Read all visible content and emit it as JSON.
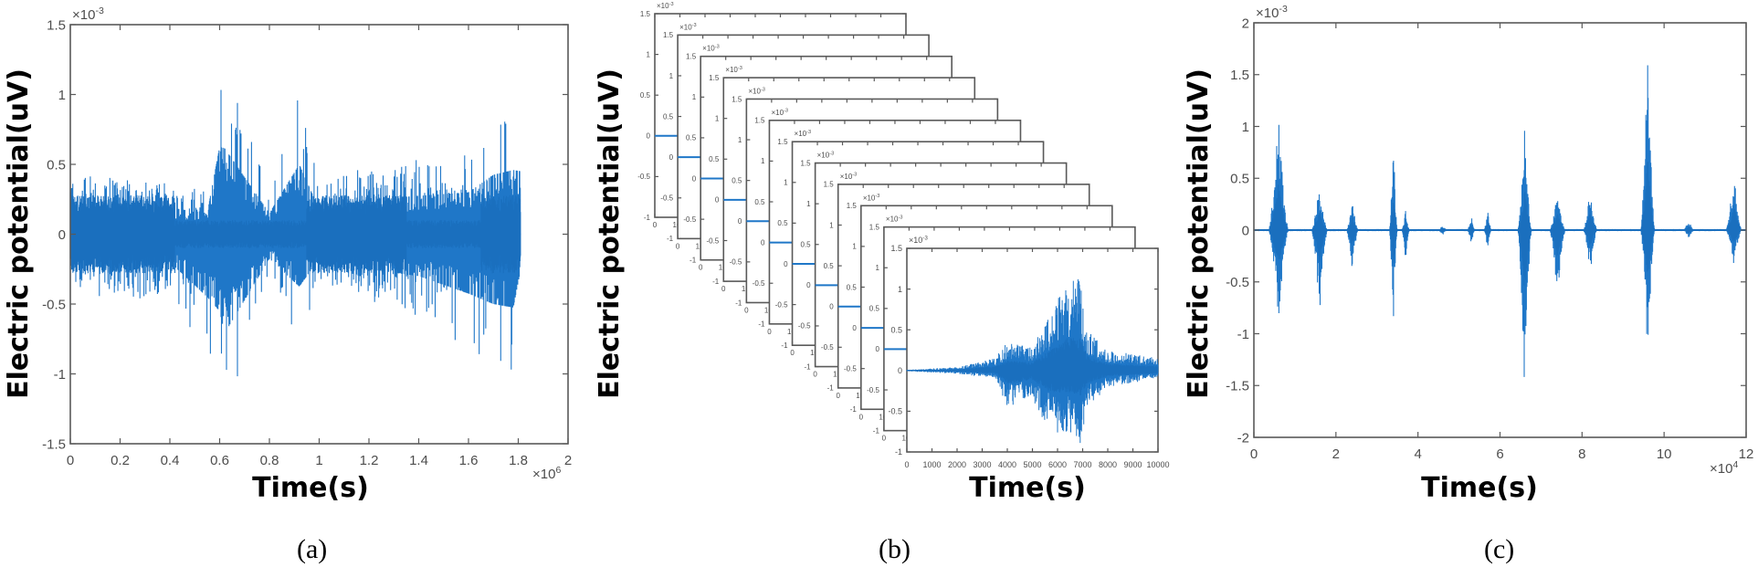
{
  "figure": {
    "panel_labels": [
      "(a)",
      "(b)",
      "(c)"
    ]
  },
  "colors": {
    "signal": "#1f77c8",
    "signal_dense": "#1a6fbe",
    "axis": "#595959",
    "tick_text": "#4d4d4d"
  },
  "chart_data": [
    {
      "id": "a",
      "type": "line",
      "title": "",
      "xlabel": "Time(s)",
      "ylabel": "Electric potential(uV)",
      "x_multiplier": "×10^6",
      "y_multiplier": "×10^-3",
      "xlim": [
        0,
        2
      ],
      "ylim": [
        -1.5,
        1.5
      ],
      "xticks": [
        "0",
        "0.2",
        "0.4",
        "0.6",
        "0.8",
        "1",
        "1.2",
        "1.4",
        "1.6",
        "1.8",
        "2"
      ],
      "yticks": [
        "-1.5",
        "-1",
        "-0.5",
        "0",
        "0.5",
        "1",
        "1.5"
      ],
      "grid": false,
      "description": "Dense oscillating signal from 0 to ~1.81e6 s, envelope ~±0.4e-3 with spikes",
      "envelope": {
        "x": [
          0,
          0.2,
          0.4,
          0.55,
          0.6,
          0.62,
          0.8,
          0.92,
          1.0,
          1.2,
          1.4,
          1.6,
          1.7,
          1.78,
          1.81
        ],
        "upper": [
          0.42,
          0.42,
          0.38,
          0.3,
          1.25,
          1.23,
          0.3,
          1.0,
          0.35,
          0.5,
          0.55,
          0.6,
          0.85,
          0.92,
          0.9
        ],
        "lower": [
          -0.35,
          -0.55,
          -0.4,
          -0.9,
          -1.1,
          -1.42,
          -0.35,
          -0.75,
          -0.35,
          -0.5,
          -0.6,
          -0.85,
          -1.0,
          -1.05,
          -0.5
        ]
      }
    },
    {
      "id": "b",
      "type": "line",
      "title": "",
      "xlabel": "Time(s)",
      "ylabel": "Electric potential(uV)",
      "y_multiplier": "×10^-3",
      "xlim": [
        0,
        10000
      ],
      "ylim": [
        -1,
        1.5
      ],
      "xticks": [
        "0",
        "1000",
        "2000",
        "3000",
        "4000",
        "5000",
        "6000",
        "7000",
        "8000",
        "9000",
        "10000"
      ],
      "yticks": [
        "-1",
        "-0.5",
        "0",
        "0.5",
        "1",
        "1.5"
      ],
      "stacked_frames": 12,
      "description": "Stack of segmented windows; front window shows a burst between 3500 and 7500 s peaking ~1.2e-3",
      "envelope": {
        "x": [
          0,
          2000,
          3500,
          4000,
          5000,
          5700,
          6400,
          6900,
          7200,
          8000,
          9000,
          10000
        ],
        "upper": [
          0.01,
          0.04,
          0.15,
          0.35,
          0.3,
          0.7,
          1.15,
          1.15,
          0.5,
          0.25,
          0.2,
          0.15
        ],
        "lower": [
          -0.01,
          -0.04,
          -0.1,
          -0.45,
          -0.35,
          -0.75,
          -0.78,
          -0.9,
          -0.45,
          -0.2,
          -0.15,
          -0.1
        ]
      }
    },
    {
      "id": "c",
      "type": "line",
      "title": "",
      "xlabel": "Time(s)",
      "ylabel": "Electric potential(uV)",
      "x_multiplier": "×10^4",
      "y_multiplier": "×10^-3",
      "xlim": [
        0,
        12
      ],
      "ylim": [
        -2,
        2
      ],
      "xticks": [
        "0",
        "2",
        "4",
        "6",
        "8",
        "10",
        "12"
      ],
      "yticks": [
        "-2",
        "-1.5",
        "-1",
        "-0.5",
        "0",
        "0.5",
        "1",
        "1.5",
        "2"
      ],
      "grid": false,
      "description": "Separate bursts of activity with quiet baseline between them",
      "bursts": [
        {
          "center": 0.6,
          "width": 0.5,
          "up": 1.17,
          "down": -0.9
        },
        {
          "center": 1.6,
          "width": 0.4,
          "up": 0.47,
          "down": -0.82
        },
        {
          "center": 2.4,
          "width": 0.3,
          "up": 0.3,
          "down": -0.42
        },
        {
          "center": 3.4,
          "width": 0.2,
          "up": 0.98,
          "down": -0.99
        },
        {
          "center": 3.7,
          "width": 0.2,
          "up": 0.2,
          "down": -0.3
        },
        {
          "center": 4.6,
          "width": 0.25,
          "up": 0.05,
          "down": -0.05
        },
        {
          "center": 5.3,
          "width": 0.2,
          "up": 0.15,
          "down": -0.15
        },
        {
          "center": 5.7,
          "width": 0.2,
          "up": 0.2,
          "down": -0.2
        },
        {
          "center": 6.6,
          "width": 0.35,
          "up": 1.0,
          "down": -1.67
        },
        {
          "center": 7.4,
          "width": 0.4,
          "up": 0.4,
          "down": -0.7
        },
        {
          "center": 8.2,
          "width": 0.35,
          "up": 0.47,
          "down": -0.43
        },
        {
          "center": 9.6,
          "width": 0.35,
          "up": 1.88,
          "down": -1.35
        },
        {
          "center": 10.6,
          "width": 0.3,
          "up": 0.1,
          "down": -0.08
        },
        {
          "center": 11.7,
          "width": 0.4,
          "up": 0.6,
          "down": -0.35
        }
      ]
    }
  ]
}
